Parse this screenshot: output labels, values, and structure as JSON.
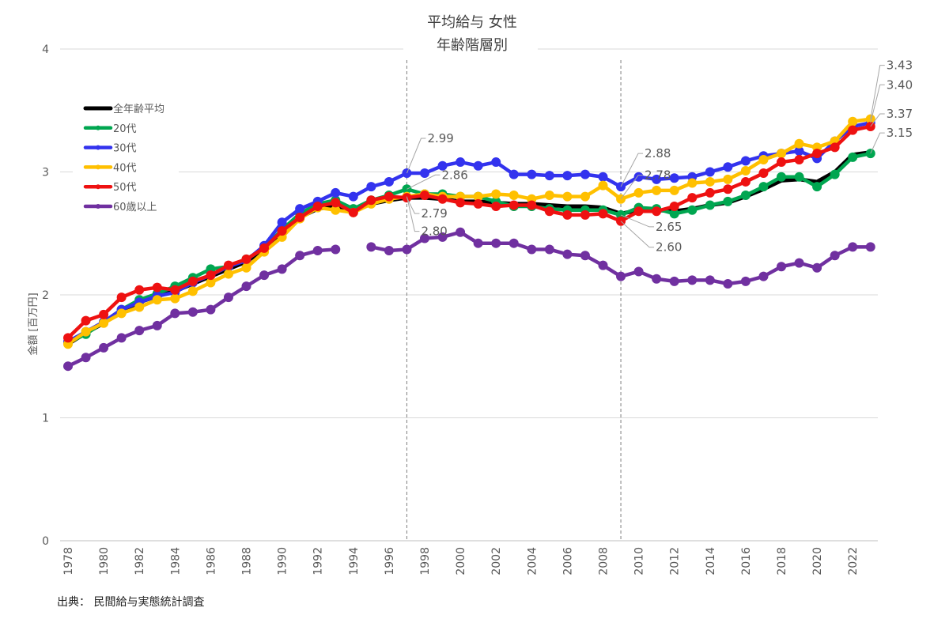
{
  "chart_data": {
    "type": "line",
    "title": "平均給与 女性",
    "subtitle": "年齢階層別",
    "xlabel": "",
    "ylabel": "金額 [百万円]",
    "ylim": [
      0,
      4
    ],
    "yticks": [
      "0",
      "1",
      "2",
      "3",
      "4"
    ],
    "xlim": [
      1978,
      2023
    ],
    "xticks": [
      "1978",
      "1980",
      "1982",
      "1984",
      "1986",
      "1988",
      "1990",
      "1992",
      "1994",
      "1996",
      "1998",
      "2000",
      "2002",
      "2004",
      "2006",
      "2008",
      "2010",
      "2012",
      "2014",
      "2016",
      "2018",
      "2020",
      "2022"
    ],
    "grid": "horizontal",
    "legend": "top-left",
    "reference_lines_x": [
      1997,
      2009
    ],
    "x": [
      1978,
      1979,
      1980,
      1981,
      1982,
      1983,
      1984,
      1985,
      1986,
      1987,
      1988,
      1989,
      1990,
      1991,
      1992,
      1993,
      1994,
      1995,
      1996,
      1997,
      1998,
      1999,
      2000,
      2001,
      2002,
      2003,
      2004,
      2005,
      2006,
      2007,
      2008,
      2009,
      2010,
      2011,
      2012,
      2013,
      2014,
      2015,
      2016,
      2017,
      2018,
      2019,
      2020,
      2021,
      2022,
      2023
    ],
    "series": [
      {
        "name": "全年齢平均",
        "color": "#000000",
        "markers": false,
        "values": [
          1.6,
          1.69,
          1.77,
          1.87,
          1.94,
          1.99,
          2.03,
          2.09,
          2.15,
          2.21,
          2.27,
          2.37,
          2.51,
          2.63,
          2.7,
          2.72,
          2.68,
          2.74,
          2.77,
          2.79,
          2.79,
          2.78,
          2.76,
          2.76,
          2.75,
          2.74,
          2.74,
          2.73,
          2.72,
          2.72,
          2.71,
          2.66,
          2.69,
          2.69,
          2.68,
          2.7,
          2.73,
          2.75,
          2.8,
          2.86,
          2.93,
          2.94,
          2.92,
          3.0,
          3.14,
          3.16
        ]
      },
      {
        "name": "20代",
        "color": "#00a650",
        "markers": true,
        "values": [
          1.61,
          1.68,
          1.78,
          1.88,
          1.96,
          2.01,
          2.07,
          2.14,
          2.21,
          2.23,
          2.29,
          2.38,
          2.53,
          2.66,
          2.74,
          2.77,
          2.7,
          2.77,
          2.81,
          2.86,
          2.82,
          2.82,
          2.8,
          2.8,
          2.76,
          2.72,
          2.72,
          2.7,
          2.69,
          2.69,
          2.69,
          2.65,
          2.71,
          2.7,
          2.66,
          2.69,
          2.73,
          2.76,
          2.81,
          2.88,
          2.96,
          2.96,
          2.88,
          2.98,
          3.12,
          3.15
        ]
      },
      {
        "name": "30代",
        "color": "#3333ee",
        "markers": true,
        "values": [
          1.62,
          1.7,
          1.78,
          1.88,
          1.94,
          1.99,
          2.02,
          2.1,
          2.16,
          2.23,
          2.28,
          2.4,
          2.59,
          2.7,
          2.76,
          2.83,
          2.8,
          2.88,
          2.92,
          2.99,
          2.99,
          3.05,
          3.08,
          3.05,
          3.08,
          2.98,
          2.98,
          2.97,
          2.97,
          2.98,
          2.96,
          2.88,
          2.96,
          2.94,
          2.95,
          2.96,
          3.0,
          3.04,
          3.09,
          3.13,
          3.15,
          3.17,
          3.11,
          3.25,
          3.37,
          3.4
        ]
      },
      {
        "name": "40代",
        "color": "#ffc000",
        "markers": true,
        "values": [
          1.6,
          1.7,
          1.77,
          1.85,
          1.9,
          1.96,
          1.97,
          2.03,
          2.1,
          2.17,
          2.22,
          2.35,
          2.47,
          2.62,
          2.71,
          2.69,
          2.67,
          2.74,
          2.78,
          2.8,
          2.82,
          2.8,
          2.8,
          2.8,
          2.82,
          2.81,
          2.78,
          2.81,
          2.8,
          2.8,
          2.89,
          2.78,
          2.83,
          2.85,
          2.85,
          2.91,
          2.92,
          2.94,
          3.01,
          3.1,
          3.15,
          3.23,
          3.2,
          3.25,
          3.41,
          3.43
        ]
      },
      {
        "name": "50代",
        "color": "#ee1111",
        "markers": true,
        "values": [
          1.65,
          1.79,
          1.84,
          1.98,
          2.04,
          2.06,
          2.04,
          2.11,
          2.16,
          2.24,
          2.29,
          2.38,
          2.52,
          2.63,
          2.72,
          2.75,
          2.67,
          2.77,
          2.8,
          2.79,
          2.81,
          2.78,
          2.75,
          2.74,
          2.72,
          2.73,
          2.73,
          2.68,
          2.65,
          2.65,
          2.66,
          2.6,
          2.68,
          2.68,
          2.72,
          2.79,
          2.83,
          2.86,
          2.92,
          2.99,
          3.08,
          3.1,
          3.15,
          3.2,
          3.34,
          3.37
        ]
      },
      {
        "name": "60歳以上",
        "color": "#7030a0",
        "markers": true,
        "values": [
          1.42,
          1.49,
          1.57,
          1.65,
          1.71,
          1.75,
          1.85,
          1.86,
          1.88,
          1.98,
          2.07,
          2.16,
          2.21,
          2.32,
          2.36,
          2.37,
          null,
          2.39,
          2.36,
          2.37,
          2.46,
          2.47,
          2.51,
          2.42,
          2.42,
          2.42,
          2.37,
          2.37,
          2.33,
          2.32,
          2.24,
          2.15,
          2.19,
          2.13,
          2.11,
          2.12,
          2.12,
          2.09,
          2.11,
          2.15,
          2.23,
          2.26,
          2.22,
          2.32,
          2.39,
          2.39
        ]
      }
    ],
    "annotations": [
      {
        "year": 1997,
        "series": "30代",
        "label": "2.99"
      },
      {
        "year": 1997,
        "series": "20代",
        "label": "2.86"
      },
      {
        "year": 1997,
        "series": "50代",
        "label": "2.79"
      },
      {
        "year": 1997,
        "series": "40代",
        "label": "2.80"
      },
      {
        "year": 2009,
        "series": "30代",
        "label": "2.88"
      },
      {
        "year": 2009,
        "series": "40代",
        "label": "2.78"
      },
      {
        "year": 2009,
        "series": "20代",
        "label": "2.65"
      },
      {
        "year": 2009,
        "series": "50代",
        "label": "2.60"
      },
      {
        "year": 2023,
        "series": "40代",
        "label": "3.43"
      },
      {
        "year": 2023,
        "series": "30代",
        "label": "3.40"
      },
      {
        "year": 2023,
        "series": "50代",
        "label": "3.37"
      },
      {
        "year": 2023,
        "series": "20代",
        "label": "3.15"
      }
    ]
  },
  "source": "出典： 民間給与実態統計調査"
}
